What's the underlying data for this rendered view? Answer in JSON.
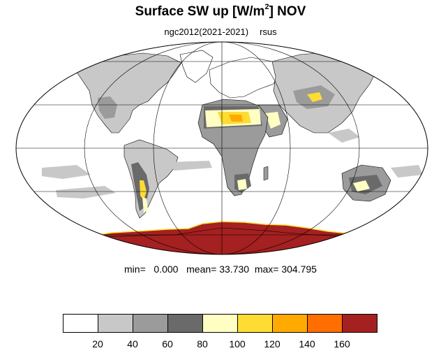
{
  "title": {
    "main": "Surface SW up [W/m",
    "superscript": "2",
    "suffix": "]  NOV"
  },
  "subtitle": {
    "left": "ngc2012(2021-2021)",
    "right": "rsus"
  },
  "stats": {
    "min_label": "min=",
    "min_value": "0.000",
    "mean_label": "mean=",
    "mean_value": "33.730",
    "max_label": "max=",
    "max_value": "304.795"
  },
  "colors": {
    "ocean": "#ffffff",
    "gray1": "#c8c8c8",
    "gray2": "#9b9b9b",
    "gray3": "#6a6a6a",
    "yellow1": "#ffffc4",
    "yellow2": "#ffdc33",
    "orange1": "#ffaa00",
    "orange2": "#ff6e00",
    "darkred": "#a52020"
  },
  "legend": {
    "bins": [
      {
        "color": "#ffffff"
      },
      {
        "color": "#c8c8c8"
      },
      {
        "color": "#9b9b9b"
      },
      {
        "color": "#6a6a6a"
      },
      {
        "color": "#ffffc4"
      },
      {
        "color": "#ffdc33"
      },
      {
        "color": "#ffaa00"
      },
      {
        "color": "#ff6e00"
      },
      {
        "color": "#a52020"
      }
    ],
    "labels": [
      "20",
      "40",
      "60",
      "80",
      "100",
      "120",
      "140",
      "160"
    ]
  }
}
